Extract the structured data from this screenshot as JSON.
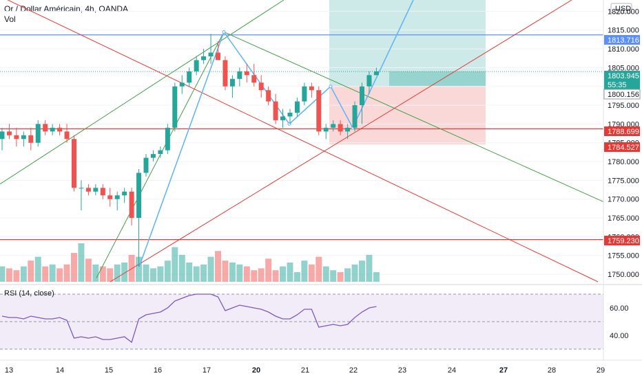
{
  "header": {
    "symbol_line": "Or / Dollar Américain, 4h, OANDA",
    "volume_label": "Vol"
  },
  "currency_label": "USD",
  "colors": {
    "up": "#26a69a",
    "down": "#ef5350",
    "trend_blue": "#64b5f6",
    "level_blue": "#5b8ff9",
    "level_red": "#e53935",
    "channel_green": "#43a047",
    "channel_red": "#e53935",
    "rsi": "#7e57c2"
  },
  "chart_data": {
    "type": "candlestick",
    "x_ticks": [
      "13",
      "14",
      "15",
      "16",
      "17",
      "20",
      "21",
      "22",
      "23",
      "24",
      "27",
      "28",
      "29"
    ],
    "bold_x_ticks": [
      "20",
      "27"
    ],
    "y_ticks": [
      1750.0,
      1755.0,
      1760.0,
      1765.0,
      1770.0,
      1775.0,
      1780.0,
      1785.0,
      1790.0,
      1795.0,
      1800.0,
      1805.0,
      1810.0,
      1815.0,
      1820.0
    ],
    "ylim": [
      1748,
      1823
    ],
    "candles": [
      {
        "o": 1786,
        "h": 1789,
        "l": 1783,
        "c": 1788
      },
      {
        "o": 1788,
        "h": 1790,
        "l": 1786,
        "c": 1787
      },
      {
        "o": 1787,
        "h": 1789,
        "l": 1784,
        "c": 1786
      },
      {
        "o": 1786,
        "h": 1788,
        "l": 1784,
        "c": 1787
      },
      {
        "o": 1787,
        "h": 1789,
        "l": 1783,
        "c": 1785
      },
      {
        "o": 1785,
        "h": 1791,
        "l": 1784,
        "c": 1790
      },
      {
        "o": 1790,
        "h": 1791,
        "l": 1787,
        "c": 1788
      },
      {
        "o": 1788,
        "h": 1790,
        "l": 1787,
        "c": 1789
      },
      {
        "o": 1789,
        "h": 1790,
        "l": 1787,
        "c": 1788
      },
      {
        "o": 1788,
        "h": 1790,
        "l": 1785,
        "c": 1786
      },
      {
        "o": 1786,
        "h": 1787,
        "l": 1772,
        "c": 1773
      },
      {
        "o": 1773,
        "h": 1775,
        "l": 1767,
        "c": 1773
      },
      {
        "o": 1773,
        "h": 1774,
        "l": 1771,
        "c": 1772
      },
      {
        "o": 1772,
        "h": 1774,
        "l": 1771,
        "c": 1773
      },
      {
        "o": 1773,
        "h": 1774,
        "l": 1770,
        "c": 1771
      },
      {
        "o": 1771,
        "h": 1773,
        "l": 1768,
        "c": 1770
      },
      {
        "o": 1770,
        "h": 1772,
        "l": 1767,
        "c": 1771
      },
      {
        "o": 1771,
        "h": 1773,
        "l": 1769,
        "c": 1772
      },
      {
        "o": 1772,
        "h": 1773,
        "l": 1763,
        "c": 1765
      },
      {
        "o": 1765,
        "h": 1778,
        "l": 1752,
        "c": 1777
      },
      {
        "o": 1777,
        "h": 1782,
        "l": 1776,
        "c": 1781
      },
      {
        "o": 1781,
        "h": 1783,
        "l": 1780,
        "c": 1782
      },
      {
        "o": 1782,
        "h": 1784,
        "l": 1781,
        "c": 1783
      },
      {
        "o": 1783,
        "h": 1790,
        "l": 1782,
        "c": 1789
      },
      {
        "o": 1789,
        "h": 1801,
        "l": 1788,
        "c": 1800
      },
      {
        "o": 1800,
        "h": 1803,
        "l": 1798,
        "c": 1801
      },
      {
        "o": 1801,
        "h": 1805,
        "l": 1800,
        "c": 1804
      },
      {
        "o": 1804,
        "h": 1808,
        "l": 1803,
        "c": 1807
      },
      {
        "o": 1807,
        "h": 1810,
        "l": 1806,
        "c": 1808
      },
      {
        "o": 1808,
        "h": 1814,
        "l": 1806,
        "c": 1809
      },
      {
        "o": 1809,
        "h": 1812,
        "l": 1807,
        "c": 1807
      },
      {
        "o": 1807,
        "h": 1808,
        "l": 1799,
        "c": 1800
      },
      {
        "o": 1800,
        "h": 1803,
        "l": 1797,
        "c": 1802
      },
      {
        "o": 1802,
        "h": 1805,
        "l": 1800,
        "c": 1804
      },
      {
        "o": 1804,
        "h": 1806,
        "l": 1801,
        "c": 1803
      },
      {
        "o": 1803,
        "h": 1806,
        "l": 1800,
        "c": 1801
      },
      {
        "o": 1801,
        "h": 1803,
        "l": 1797,
        "c": 1799
      },
      {
        "o": 1799,
        "h": 1800,
        "l": 1795,
        "c": 1796
      },
      {
        "o": 1796,
        "h": 1798,
        "l": 1790,
        "c": 1791
      },
      {
        "o": 1791,
        "h": 1794,
        "l": 1789,
        "c": 1792
      },
      {
        "o": 1792,
        "h": 1794,
        "l": 1790,
        "c": 1793
      },
      {
        "o": 1793,
        "h": 1797,
        "l": 1792,
        "c": 1796
      },
      {
        "o": 1796,
        "h": 1801,
        "l": 1795,
        "c": 1800
      },
      {
        "o": 1800,
        "h": 1801,
        "l": 1797,
        "c": 1799
      },
      {
        "o": 1799,
        "h": 1800,
        "l": 1787,
        "c": 1788
      },
      {
        "o": 1788,
        "h": 1790,
        "l": 1786,
        "c": 1789
      },
      {
        "o": 1789,
        "h": 1791,
        "l": 1788,
        "c": 1790
      },
      {
        "o": 1790,
        "h": 1791,
        "l": 1787,
        "c": 1788
      },
      {
        "o": 1788,
        "h": 1790,
        "l": 1786,
        "c": 1789
      },
      {
        "o": 1789,
        "h": 1796,
        "l": 1788,
        "c": 1795
      },
      {
        "o": 1795,
        "h": 1801,
        "l": 1790,
        "c": 1800
      },
      {
        "o": 1800,
        "h": 1804,
        "l": 1798,
        "c": 1803
      },
      {
        "o": 1803,
        "h": 1805,
        "l": 1803,
        "c": 1804
      }
    ],
    "volume": [
      8,
      7,
      6,
      8,
      11,
      13,
      8,
      9,
      7,
      9,
      15,
      20,
      12,
      9,
      8,
      7,
      9,
      10,
      14,
      13,
      9,
      7,
      8,
      11,
      18,
      14,
      10,
      8,
      9,
      13,
      16,
      11,
      10,
      9,
      8,
      6,
      7,
      12,
      6,
      8,
      10,
      5,
      11,
      9,
      13,
      8,
      6,
      5,
      7,
      9,
      11,
      14,
      5
    ],
    "price_tags": [
      {
        "value": "1813.716",
        "kind": "level_blue"
      },
      {
        "value": "1803.945",
        "kind": "last"
      },
      {
        "value": "55:35",
        "kind": "timer"
      },
      {
        "value": "1800.156",
        "kind": "entry"
      },
      {
        "value": "1788.699",
        "kind": "level_red"
      },
      {
        "value": "1784.527",
        "kind": "stop"
      },
      {
        "value": "1759.230",
        "kind": "level_red"
      }
    ],
    "levels": [
      1813.716,
      1788.699,
      1759.23
    ],
    "position": {
      "entry": 1800.156,
      "target": 1823,
      "stop": 1784.527
    },
    "rsi": {
      "title": "RSI (14, close)",
      "y_ticks": [
        "60.00",
        "40.00"
      ],
      "band": [
        30,
        70
      ],
      "ylim": [
        25,
        75
      ],
      "values": [
        54,
        53,
        53,
        52,
        54,
        53,
        52,
        52,
        53,
        51,
        38,
        39,
        38,
        39,
        37,
        37,
        38,
        39,
        35,
        52,
        55,
        56,
        57,
        60,
        65,
        67,
        69,
        70,
        70,
        70,
        68,
        58,
        60,
        62,
        61,
        60,
        59,
        57,
        54,
        52,
        52,
        55,
        59,
        59,
        46,
        47,
        48,
        47,
        48,
        53,
        57,
        60,
        61
      ]
    }
  }
}
